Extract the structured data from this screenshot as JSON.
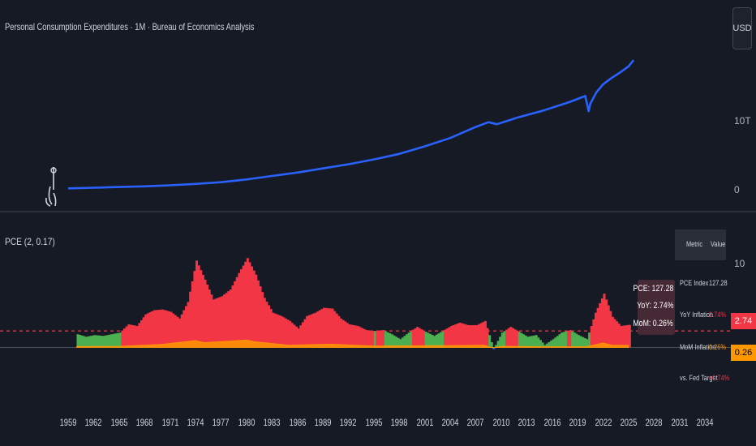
{
  "header": {
    "title": "Personal Consumption Expenditures · 1M · Bureau of Economics Analysis"
  },
  "currency_button": "USD",
  "colors": {
    "background": "#161a25",
    "line": "#2962ff",
    "red": "#f23645",
    "green": "#4caf50",
    "orange": "#ff9800",
    "target_line": "#f23645"
  },
  "indicator": {
    "title": "PCE (2, 0.17)"
  },
  "table": {
    "head": {
      "metric": "Metric",
      "value": "Value"
    },
    "rows": [
      {
        "metric": "PCE Index",
        "value": "127.28",
        "value_color": "#d1d4dc"
      },
      {
        "metric": "YoY Inflation",
        "value": "2.74%",
        "value_color": "#f23645"
      },
      {
        "metric": "MoM Inflation",
        "value": "0.26%",
        "value_color": "#ff9800"
      },
      {
        "metric": "vs. Fed Target",
        "value": "+0.74%",
        "value_color": "#f23645"
      }
    ]
  },
  "tooltip": {
    "pce": "PCE: 127.28",
    "yoy": "YoY: 2.74%",
    "mom": "MoM: 0.26%"
  },
  "badges": {
    "yoy": "2.74",
    "mom": "0.26"
  },
  "chart_data": [
    {
      "type": "line",
      "title": "Personal Consumption Expenditures · 1M · Bureau of Economics Analysis",
      "ylabel": "USD",
      "y_tick_labels": [
        "10T",
        "0"
      ],
      "y_ticks": [
        10,
        0
      ],
      "ylim": [
        -0.6,
        23.5
      ],
      "y_unit": "trillion USD",
      "xlim": [
        1959,
        2036
      ],
      "series": [
        {
          "x": [
            1959,
            1962,
            1965,
            1968,
            1971,
            1974,
            1977,
            1980,
            1983,
            1986,
            1989,
            1992,
            1995,
            1998,
            2001,
            2004,
            2007,
            2008.5,
            2009.5,
            2012,
            2015,
            2018,
            2019.9,
            2020.3,
            2020.5,
            2021.2,
            2022,
            2023,
            2024,
            2025,
            2025.6
          ],
          "values": [
            0.3,
            0.4,
            0.5,
            0.6,
            0.75,
            0.95,
            1.2,
            1.6,
            2.1,
            2.6,
            3.2,
            3.8,
            4.5,
            5.3,
            6.4,
            7.6,
            9.2,
            9.9,
            9.6,
            10.6,
            11.6,
            12.8,
            13.7,
            11.5,
            12.6,
            14.2,
            15.4,
            16.3,
            17.1,
            18.0,
            18.9
          ]
        }
      ]
    },
    {
      "type": "area",
      "title": "PCE (2, 0.17)",
      "y_tick_labels": [
        "10"
      ],
      "y_ticks": [
        10
      ],
      "ylim": [
        -2.3,
        12.3
      ],
      "xlim": [
        1959,
        2036
      ],
      "fed_target": 2,
      "x_tick_labels": [
        "1959",
        "1962",
        "1965",
        "1968",
        "1971",
        "1974",
        "1977",
        "1980",
        "1983",
        "1986",
        "1989",
        "1992",
        "1995",
        "1998",
        "2001",
        "2004",
        "2007",
        "2010",
        "2013",
        "2016",
        "2019",
        "2022",
        "2025",
        "2028",
        "2031",
        "2034"
      ],
      "series": [
        {
          "name": "YoY Inflation",
          "x": [
            1960,
            1961,
            1962,
            1963,
            1964,
            1965,
            1966,
            1967,
            1968,
            1969,
            1970,
            1971,
            1972,
            1973,
            1974,
            1975,
            1976,
            1977,
            1978,
            1979,
            1980,
            1981,
            1982,
            1983,
            1984,
            1985,
            1986,
            1987,
            1988,
            1989,
            1990,
            1991,
            1992,
            1993,
            1994,
            1995,
            1996,
            1997,
            1998,
            1999,
            2000,
            2001,
            2002,
            2003,
            2004,
            2005,
            2006,
            2007,
            2008,
            2009,
            2010,
            2011,
            2012,
            2013,
            2014,
            2015,
            2016,
            2017,
            2018,
            2019,
            2020,
            2021,
            2022,
            2023,
            2024,
            2025
          ],
          "values": [
            1.6,
            1.3,
            1.5,
            1.4,
            1.6,
            1.8,
            2.8,
            2.6,
            4.0,
            4.5,
            4.6,
            4.3,
            3.5,
            5.5,
            10.5,
            8.2,
            5.8,
            6.2,
            7.0,
            9.0,
            10.8,
            8.8,
            6.0,
            4.2,
            3.8,
            3.2,
            2.3,
            3.8,
            4.2,
            4.8,
            4.7,
            3.5,
            2.8,
            2.6,
            2.1,
            2.0,
            2.1,
            1.6,
            1.0,
            1.8,
            2.5,
            1.9,
            1.4,
            2.0,
            2.6,
            3.0,
            2.7,
            2.7,
            3.2,
            -0.2,
            1.8,
            2.5,
            1.9,
            1.3,
            1.5,
            0.3,
            1.0,
            1.8,
            2.1,
            1.5,
            1.0,
            4.2,
            6.5,
            3.7,
            2.6,
            2.74
          ]
        },
        {
          "name": "MoM Inflation",
          "x": [
            1960,
            1965,
            1970,
            1974,
            1975,
            1980,
            1981,
            1985,
            1990,
            1995,
            2000,
            2005,
            2008,
            2009,
            2010,
            2015,
            2020,
            2022,
            2023,
            2025
          ],
          "values": [
            0.12,
            0.15,
            0.38,
            0.85,
            0.6,
            0.9,
            0.7,
            0.28,
            0.4,
            0.18,
            0.22,
            0.25,
            0.28,
            -0.05,
            0.15,
            0.1,
            0.1,
            0.55,
            0.3,
            0.26
          ]
        }
      ]
    }
  ]
}
